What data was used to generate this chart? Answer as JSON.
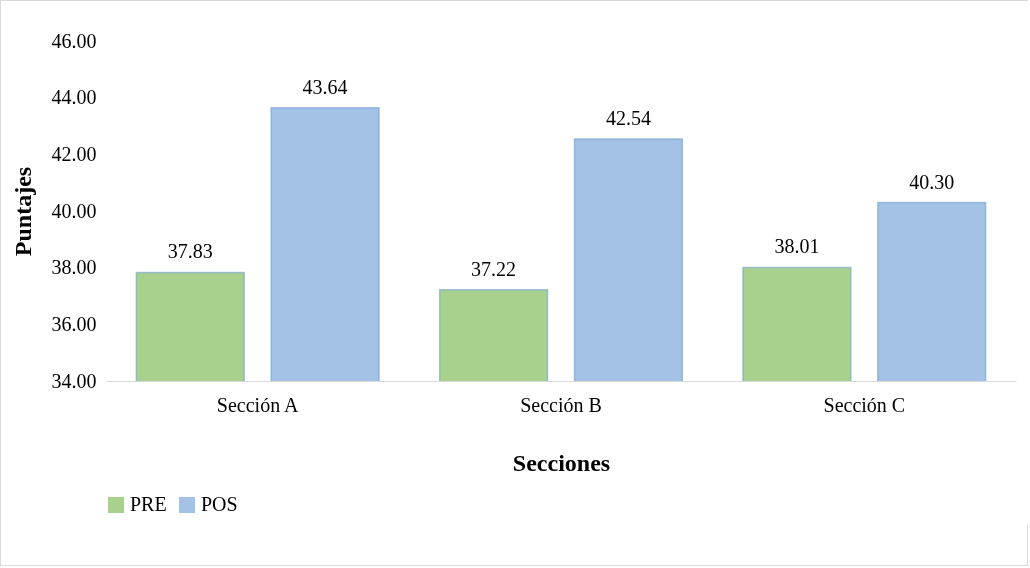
{
  "chart_data": {
    "type": "bar",
    "xlabel": "Secciones",
    "ylabel": "Puntajes",
    "categories": [
      "Sección A",
      "Sección B",
      "Sección C"
    ],
    "series": [
      {
        "name": "PRE",
        "color": "#a9d18e",
        "values": [
          37.83,
          37.22,
          38.01
        ],
        "value_labels": [
          "37.83",
          "37.22",
          "38.01"
        ]
      },
      {
        "name": "POS",
        "color": "#a3c2e6",
        "values": [
          43.64,
          42.54,
          40.3
        ],
        "value_labels": [
          "43.64",
          "42.54",
          "40.30"
        ]
      }
    ],
    "ylim": [
      34,
      46
    ],
    "yticks": [
      {
        "value": 34,
        "label": "34.00"
      },
      {
        "value": 36,
        "label": "36.00"
      },
      {
        "value": 38,
        "label": "38.00"
      },
      {
        "value": 40,
        "label": "40.00"
      },
      {
        "value": 42,
        "label": "42.00"
      },
      {
        "value": 44,
        "label": "44.00"
      },
      {
        "value": 46,
        "label": "46.00"
      }
    ],
    "grid": false,
    "legend": "bottom"
  }
}
